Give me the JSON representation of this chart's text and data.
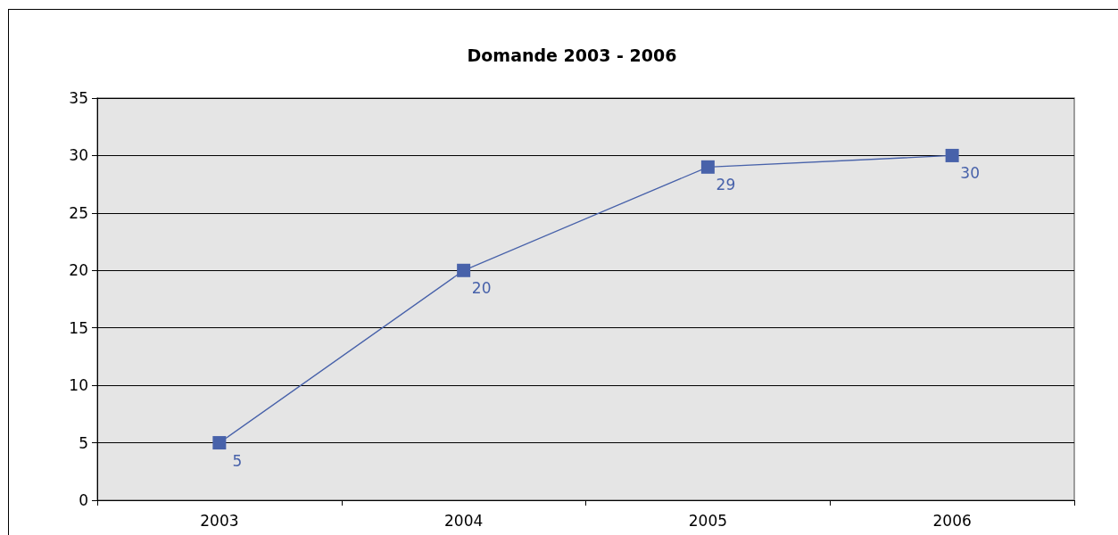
{
  "chart_data": {
    "type": "line",
    "title": "Domande 2003 - 2006",
    "categories": [
      "2003",
      "2004",
      "2005",
      "2006"
    ],
    "series": [
      {
        "color": "#4862aa",
        "values": [
          5,
          20,
          29,
          30
        ]
      }
    ],
    "ylim": [
      0,
      35
    ],
    "yticks": [
      0,
      5,
      10,
      15,
      20,
      25,
      30,
      35
    ],
    "grid": "y",
    "marker": "square",
    "line_style": "solid",
    "data_labels": true
  }
}
